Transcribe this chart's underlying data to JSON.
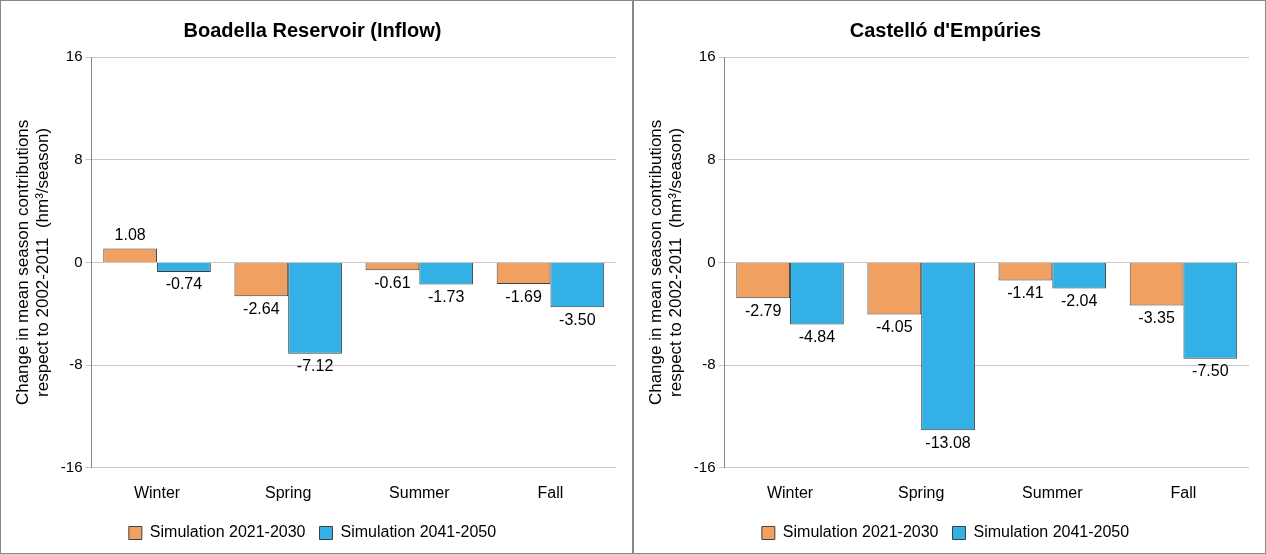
{
  "chart_data": [
    {
      "type": "bar",
      "title": "Boadella Reservoir (Inflow)",
      "ylabel": "Change in mean season contributions\nrespect to 2002-2011  (hm³/season)",
      "categories": [
        "Winter",
        "Spring",
        "Summer",
        "Fall"
      ],
      "series": [
        {
          "name": "Simulation 2021-2030",
          "color": "#f0a060",
          "values": [
            1.08,
            -2.64,
            -0.61,
            -1.69
          ],
          "value_labels": [
            "1.08",
            "-2.64",
            "-0.61",
            "-1.69"
          ]
        },
        {
          "name": "Simulation 2041-2050",
          "color": "#33b0e6",
          "values": [
            -0.74,
            -7.12,
            -1.73,
            -3.5
          ],
          "value_labels": [
            "-0.74",
            "-7.12",
            "-1.73",
            "-3.50"
          ]
        }
      ],
      "ylim": [
        -16,
        16
      ],
      "yticks": [
        -16,
        -8,
        0,
        8,
        16
      ],
      "grid": "y",
      "legend": "bottom"
    },
    {
      "type": "bar",
      "title": "Castelló d'Empúries",
      "ylabel": "Change in mean season contributions\nrespect to 2002-2011  (hm³/season)",
      "categories": [
        "Winter",
        "Spring",
        "Summer",
        "Fall"
      ],
      "series": [
        {
          "name": "Simulation 2021-2030",
          "color": "#f0a060",
          "values": [
            -2.79,
            -4.05,
            -1.41,
            -3.35
          ],
          "value_labels": [
            "-2.79",
            "-4.05",
            "-1.41",
            "-3.35"
          ]
        },
        {
          "name": "Simulation 2041-2050",
          "color": "#33b0e6",
          "values": [
            -4.84,
            -13.08,
            -2.04,
            -7.5
          ],
          "value_labels": [
            "-4.84",
            "-13.08",
            "-2.04",
            "-7.50"
          ]
        }
      ],
      "ylim": [
        -16,
        16
      ],
      "yticks": [
        -16,
        -8,
        0,
        8,
        16
      ],
      "grid": "y",
      "legend": "bottom"
    }
  ]
}
